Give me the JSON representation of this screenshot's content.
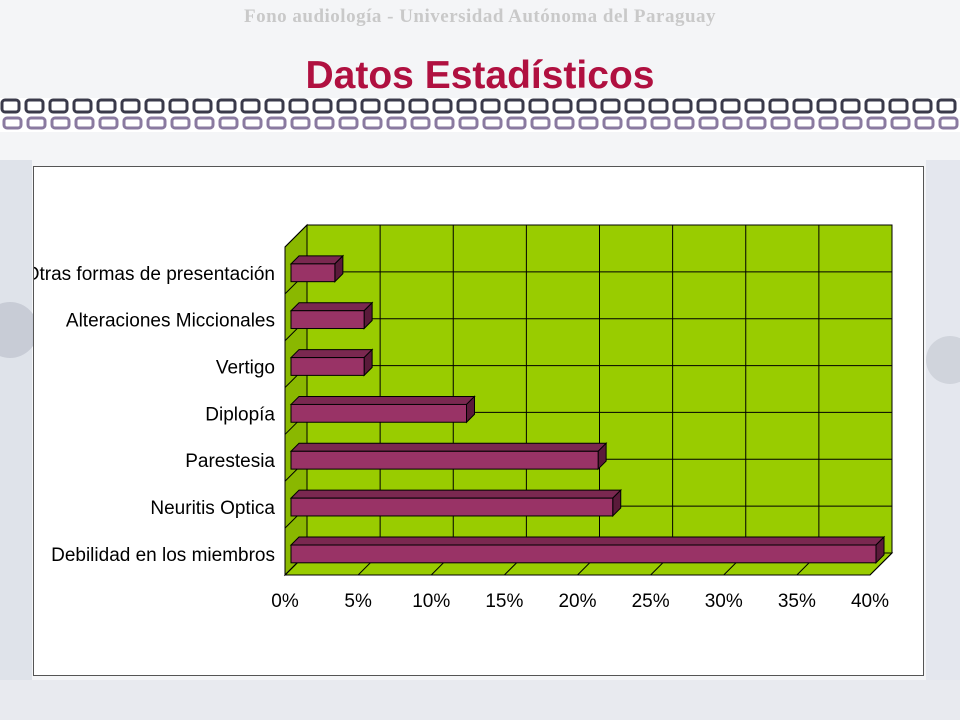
{
  "header": {
    "subtitle": "Fono audiología - Universidad Autónoma del Paraguay",
    "title": "Datos Estadísticos"
  },
  "colors": {
    "title": "#b01040",
    "plot_background": "#99cc00",
    "bar": "#993366",
    "bar_top": "#7a2850",
    "bar_end": "#5a1a3a",
    "grid": "#000000"
  },
  "chart_data": {
    "type": "bar",
    "orientation": "horizontal",
    "style": "3d",
    "categories": [
      "Debilidad en los miembros",
      "Neuritis Optica",
      "Parestesia",
      "Diplopía",
      "Vertigo",
      "Alteraciones Miccionales",
      "Otras formas de presentación"
    ],
    "values": [
      40,
      22,
      21,
      12,
      5,
      5,
      3
    ],
    "value_unit": "%",
    "xlim": [
      0,
      40
    ],
    "x_ticks": [
      "0%",
      "5%",
      "10%",
      "15%",
      "20%",
      "25%",
      "30%",
      "35%",
      "40%"
    ],
    "grid": true,
    "legend": "none"
  }
}
